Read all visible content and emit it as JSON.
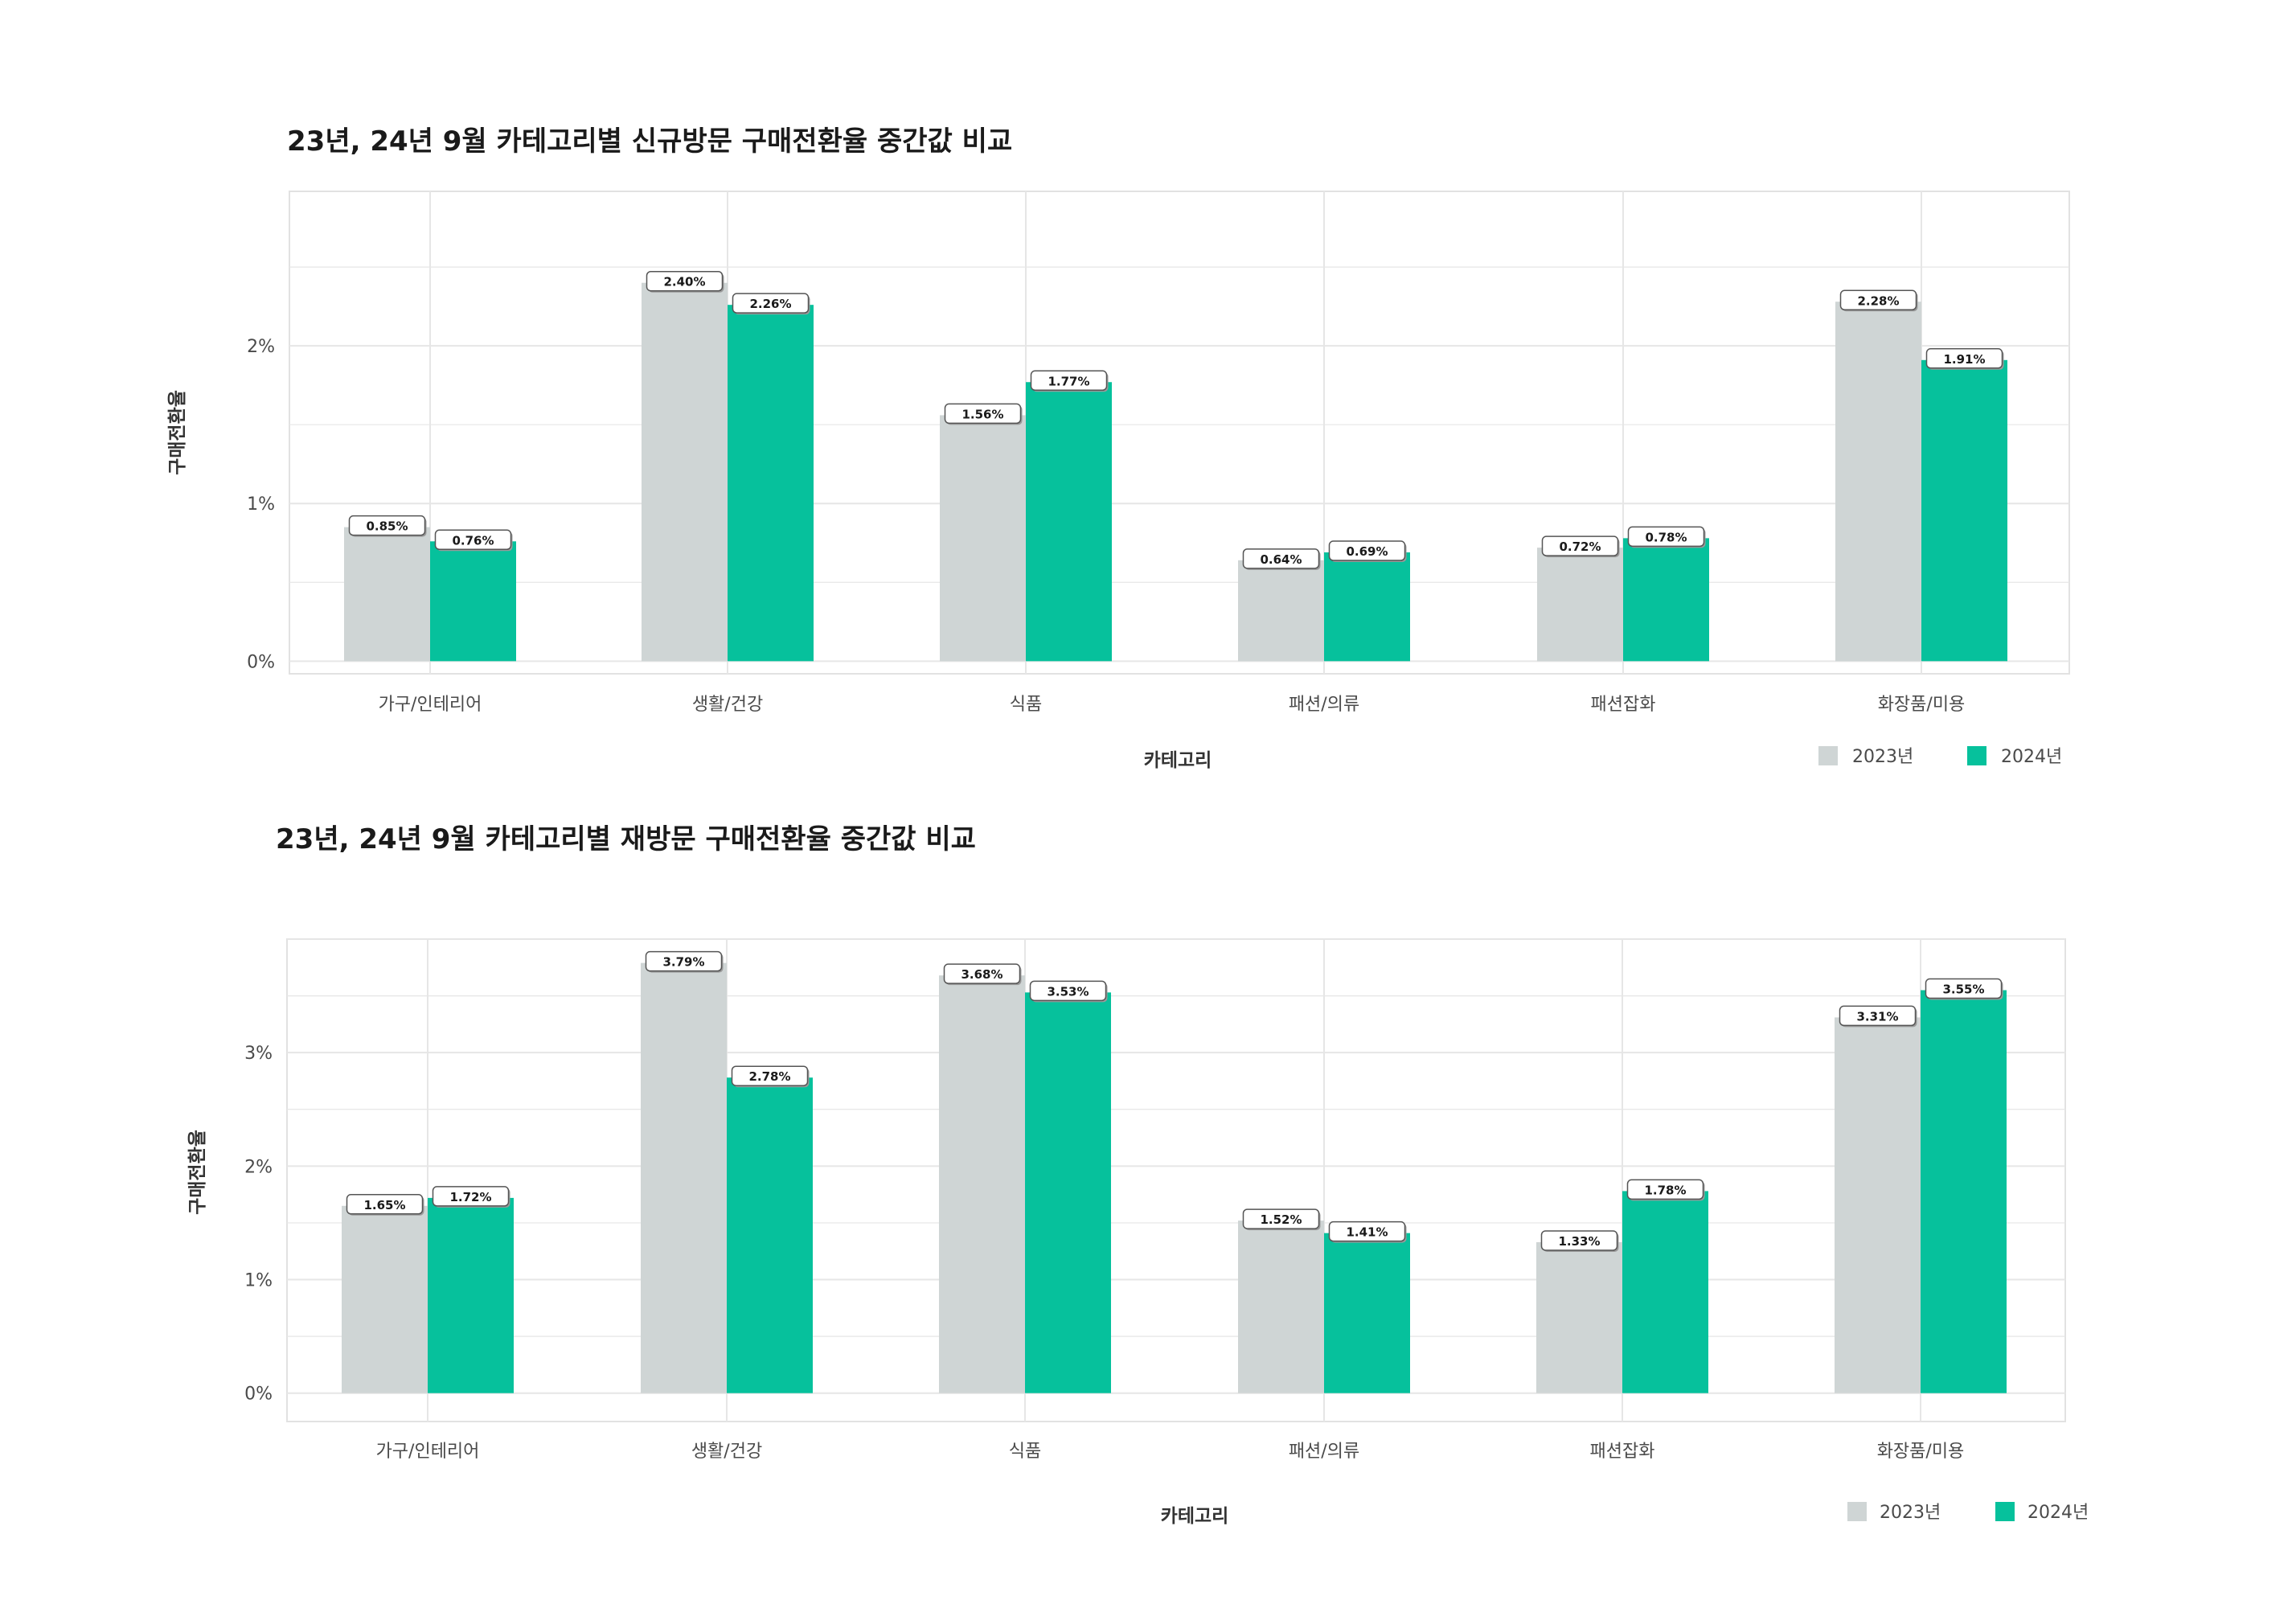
{
  "colors": {
    "series_2023": "#cfd5d5",
    "series_2024": "#06c19c",
    "grid": "#e6e6e6",
    "panel_border": "#e2e2e2"
  },
  "chart_data": [
    {
      "type": "bar",
      "title": "23년, 24년 9월 카테고리별 신규방문 구매전환율 중간값 비교",
      "xlabel": "카테고리",
      "ylabel": "구매전환율",
      "categories": [
        "가구/인테리어",
        "생활/건강",
        "식품",
        "패션/의류",
        "패션잡화",
        "화장품/미용"
      ],
      "yticks": [
        0,
        1,
        2
      ],
      "ytick_labels": [
        "0%",
        "1%",
        "2%"
      ],
      "ylim": [
        -0.08,
        2.98
      ],
      "grid": true,
      "legend_position": "bottom-right",
      "series": [
        {
          "name": "2023년",
          "values": [
            0.85,
            2.4,
            1.56,
            0.64,
            0.72,
            2.28
          ],
          "labels": [
            "0.85%",
            "2.40%",
            "1.56%",
            "0.64%",
            "0.72%",
            "2.28%"
          ]
        },
        {
          "name": "2024년",
          "values": [
            0.76,
            2.26,
            1.77,
            0.69,
            0.78,
            1.91
          ],
          "labels": [
            "0.76%",
            "2.26%",
            "1.77%",
            "0.69%",
            "0.78%",
            "1.91%"
          ]
        }
      ]
    },
    {
      "type": "bar",
      "title": "23년, 24년 9월 카테고리별 재방문 구매전환율 중간값 비교",
      "xlabel": "카테고리",
      "ylabel": "구매전환율",
      "categories": [
        "가구/인테리어",
        "생활/건강",
        "식품",
        "패션/의류",
        "패션잡화",
        "화장품/미용"
      ],
      "yticks": [
        0,
        1,
        2,
        3
      ],
      "ytick_labels": [
        "0%",
        "1%",
        "2%",
        "3%"
      ],
      "ylim": [
        -0.25,
        4.0
      ],
      "grid": true,
      "legend_position": "bottom-right",
      "series": [
        {
          "name": "2023년",
          "values": [
            1.65,
            3.79,
            3.68,
            1.52,
            1.33,
            3.31
          ],
          "labels": [
            "1.65%",
            "3.79%",
            "3.68%",
            "1.52%",
            "1.33%",
            "3.31%"
          ]
        },
        {
          "name": "2024년",
          "values": [
            1.72,
            2.78,
            3.53,
            1.41,
            1.78,
            3.55
          ],
          "labels": [
            "1.72%",
            "2.78%",
            "3.53%",
            "1.41%",
            "1.78%",
            "3.55%"
          ]
        }
      ]
    }
  ]
}
